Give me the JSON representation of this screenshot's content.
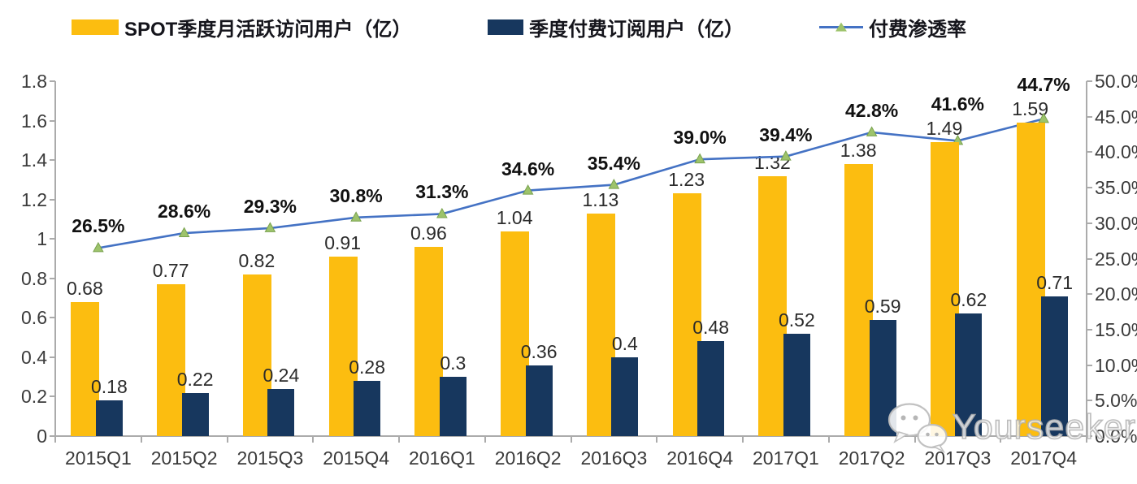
{
  "legend": {
    "items": [
      {
        "label": "SPOT季度月活跃访问用户（亿）",
        "swatch": "bar",
        "color": "#FCBD10"
      },
      {
        "label": "季度付费订阅用户（亿）",
        "swatch": "bar",
        "color": "#17375E"
      },
      {
        "label": "付费渗透率",
        "swatch": "line",
        "color": "#4472C4",
        "marker_color": "#9DC36B"
      }
    ]
  },
  "chart_data": {
    "type": "combo",
    "categories": [
      "2015Q1",
      "2015Q2",
      "2015Q3",
      "2015Q4",
      "2016Q1",
      "2016Q2",
      "2016Q3",
      "2016Q4",
      "2017Q1",
      "2017Q2",
      "2017Q3",
      "2017Q4"
    ],
    "series": [
      {
        "name": "SPOT季度月活跃访问用户（亿）",
        "type": "bar",
        "axis": "left",
        "color": "#FCBD10",
        "values": [
          0.68,
          0.77,
          0.82,
          0.91,
          0.96,
          1.04,
          1.13,
          1.23,
          1.32,
          1.38,
          1.49,
          1.59
        ],
        "labels": [
          "0.68",
          "0.77",
          "0.82",
          "0.91",
          "0.96",
          "1.04",
          "1.13",
          "1.23",
          "1.32",
          "1.38",
          "1.49",
          "1.59"
        ]
      },
      {
        "name": "季度付费订阅用户（亿）",
        "type": "bar",
        "axis": "left",
        "color": "#17375E",
        "values": [
          0.18,
          0.22,
          0.24,
          0.28,
          0.3,
          0.36,
          0.4,
          0.48,
          0.52,
          0.59,
          0.62,
          0.71
        ],
        "labels": [
          "0.18",
          "0.22",
          "0.24",
          "0.28",
          "0.3",
          "0.36",
          "0.4",
          "0.48",
          "0.52",
          "0.59",
          "0.62",
          "0.71"
        ]
      },
      {
        "name": "付费渗透率",
        "type": "line",
        "axis": "right",
        "color": "#4472C4",
        "marker": "triangle",
        "marker_color": "#9DC36B",
        "marker_edge": "#79A24E",
        "values": [
          26.5,
          28.6,
          29.3,
          30.8,
          31.3,
          34.6,
          35.4,
          39.0,
          39.4,
          42.8,
          41.6,
          44.7
        ],
        "labels": [
          "26.5%",
          "28.6%",
          "29.3%",
          "30.8%",
          "31.3%",
          "34.6%",
          "35.4%",
          "39.0%",
          "39.4%",
          "42.8%",
          "41.6%",
          "44.7%"
        ]
      }
    ],
    "left_axis": {
      "min": 0,
      "max": 1.8,
      "tick_values": [
        0,
        0.2,
        0.4,
        0.6,
        0.8,
        1,
        1.2,
        1.4,
        1.6,
        1.8
      ],
      "tick_labels": [
        "0",
        "0.2",
        "0.4",
        "0.6",
        "0.8",
        "1",
        "1.2",
        "1.4",
        "1.6",
        "1.8"
      ]
    },
    "right_axis": {
      "min": 0,
      "max": 50,
      "tick_values": [
        0,
        5,
        10,
        15,
        20,
        25,
        30,
        35,
        40,
        45,
        50
      ],
      "tick_labels": [
        "0.0%",
        "5.0%",
        "10.0%",
        "15.0%",
        "20.0%",
        "25.0%",
        "30.0%",
        "35.0%",
        "40.0%",
        "45.0%",
        "50.0%"
      ]
    },
    "grid": false,
    "legend_position": "top"
  },
  "watermark": {
    "text": "Yourseeker",
    "icon": "wechat-icon"
  }
}
